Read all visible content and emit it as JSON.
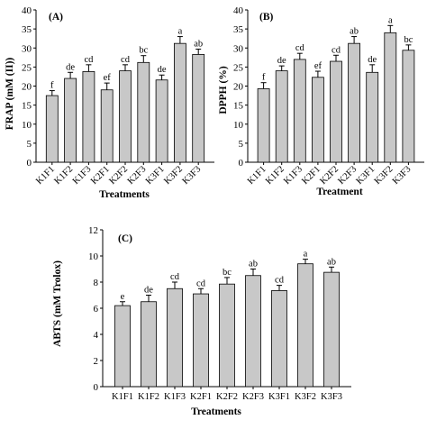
{
  "chart_data": [
    {
      "type": "bar",
      "panel_label": "(A)",
      "categories": [
        "K1F1",
        "K1F2",
        "K1F3",
        "K2F1",
        "K2F2",
        "K2F3",
        "K3F1",
        "K3F2",
        "K3F3"
      ],
      "values": [
        17.5,
        22.0,
        23.8,
        19.0,
        24.0,
        26.2,
        21.6,
        31.2,
        28.3
      ],
      "errors": [
        1.3,
        1.6,
        1.8,
        1.8,
        1.6,
        1.8,
        1.3,
        1.8,
        1.4
      ],
      "letters": [
        "f",
        "de",
        "cd",
        "ef",
        "cd",
        "bc",
        "de",
        "a",
        "ab"
      ],
      "xlabel": "Treatments",
      "ylabel": "FRAP (mM (II))",
      "ylim": [
        0,
        40
      ],
      "yticks": [
        0,
        5,
        10,
        15,
        20,
        25,
        30,
        35,
        40
      ],
      "bar_color": "#c8c8c8",
      "grid": false
    },
    {
      "type": "bar",
      "panel_label": "(B)",
      "categories": [
        "K1F1",
        "K1F2",
        "K1F3",
        "K2F1",
        "K2F2",
        "K2F3",
        "K3F1",
        "K3F2",
        "K3F3"
      ],
      "values": [
        19.3,
        24.0,
        27.0,
        22.3,
        26.5,
        31.2,
        23.6,
        34.0,
        29.4
      ],
      "errors": [
        1.6,
        1.3,
        1.6,
        1.6,
        1.6,
        1.8,
        2.0,
        1.9,
        1.4
      ],
      "letters": [
        "f",
        "de",
        "cd",
        "ef",
        "cd",
        "ab",
        "de",
        "a",
        "bc"
      ],
      "xlabel": "Treatment",
      "ylabel": "DPPH (%)",
      "ylim": [
        0,
        40
      ],
      "yticks": [
        0,
        5,
        10,
        15,
        20,
        25,
        30,
        35,
        40
      ],
      "bar_color": "#c8c8c8",
      "grid": false
    },
    {
      "type": "bar",
      "panel_label": "(C)",
      "categories": [
        "K1F1",
        "K1F2",
        "K1F3",
        "K2F1",
        "K2F2",
        "K2F3",
        "K3F1",
        "K3F2",
        "K3F3"
      ],
      "values": [
        6.2,
        6.5,
        7.5,
        7.1,
        7.85,
        8.5,
        7.35,
        9.4,
        8.75
      ],
      "errors": [
        0.3,
        0.5,
        0.5,
        0.4,
        0.5,
        0.5,
        0.4,
        0.35,
        0.4
      ],
      "letters": [
        "e",
        "de",
        "cd",
        "cd",
        "bc",
        "ab",
        "cd",
        "a",
        "ab"
      ],
      "xlabel": "Treatments",
      "ylabel": "ABTS (mM Trolox)",
      "ylim": [
        0,
        12
      ],
      "yticks": [
        0,
        2,
        4,
        6,
        8,
        10,
        12
      ],
      "bar_color": "#c8c8c8",
      "grid": false
    }
  ]
}
